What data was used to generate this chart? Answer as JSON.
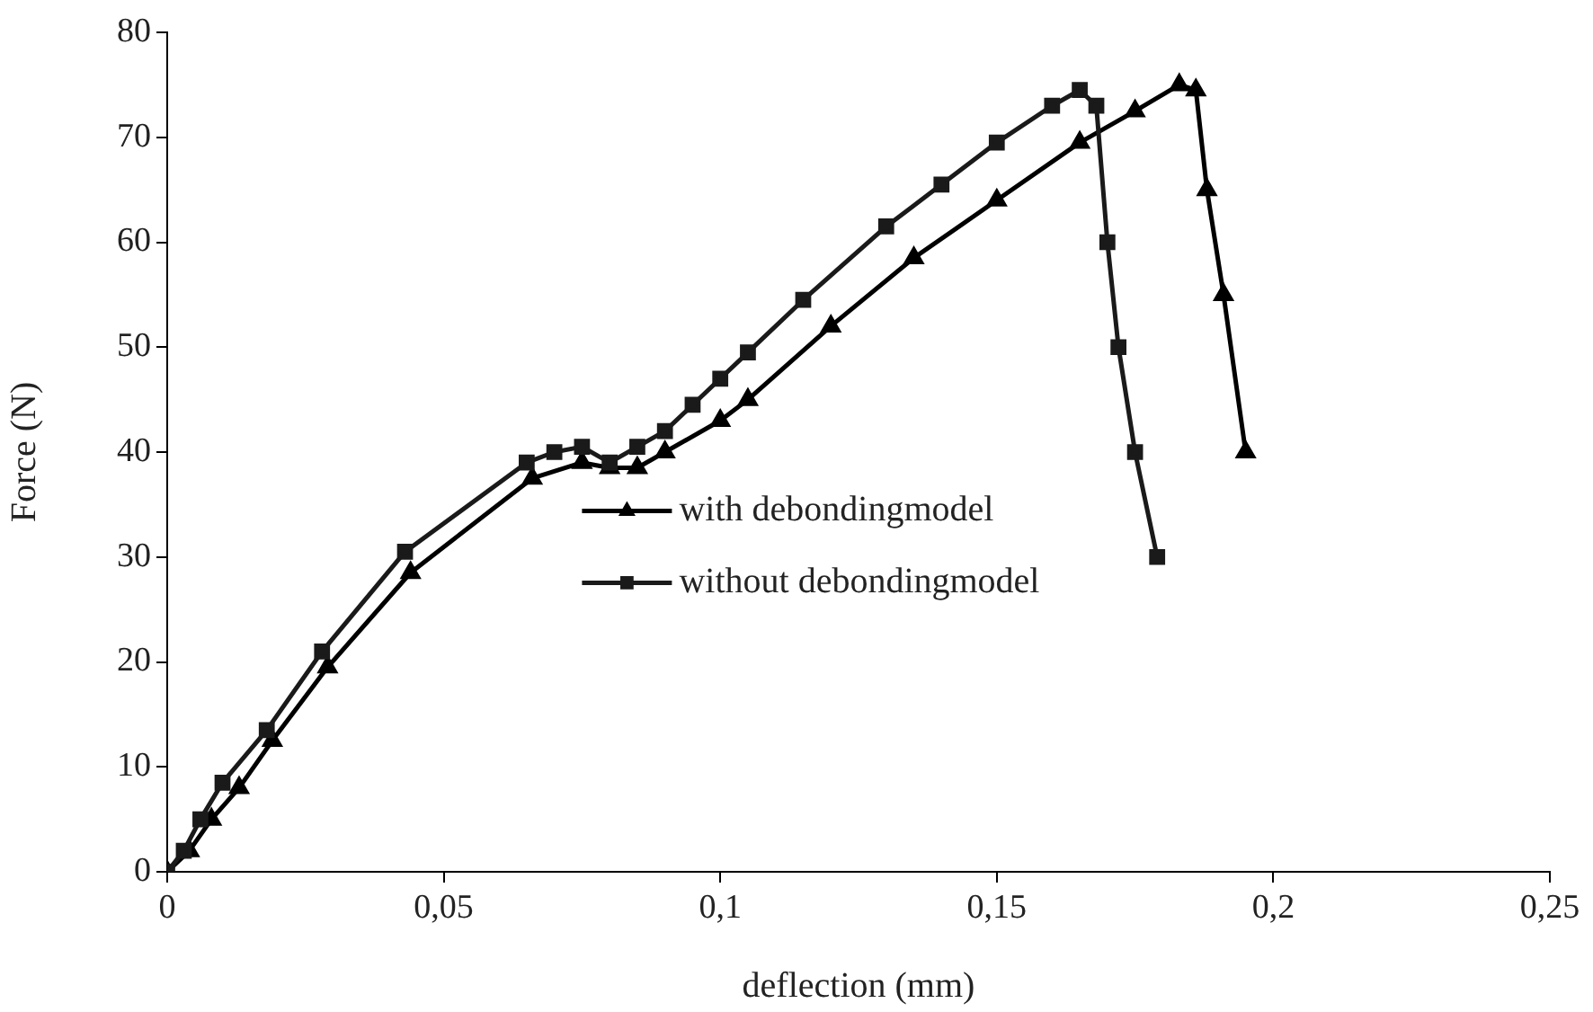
{
  "chart_data": {
    "type": "line",
    "xlabel": "deflection (mm)",
    "ylabel": "Force (N)",
    "xlim": [
      0,
      0.25
    ],
    "xticks": [
      0,
      {
        "value": 0.05,
        "label": "0,05"
      },
      {
        "value": 0.1,
        "label": "0,1"
      },
      {
        "value": 0.15,
        "label": "0,15"
      },
      {
        "value": 0.2,
        "label": "0,2"
      },
      {
        "value": 0.25,
        "label": "0,25"
      }
    ],
    "ylim": [
      0,
      80
    ],
    "yticks": [
      0,
      10,
      20,
      30,
      40,
      50,
      60,
      70,
      80
    ],
    "grid": false,
    "legend": "center",
    "line_style": "solid",
    "series": [
      {
        "name": "with debondingmodel",
        "color": "#000000",
        "marker": "triangle",
        "x": [
          0,
          0.004,
          0.008,
          0.013,
          0.019,
          0.029,
          0.044,
          0.066,
          0.075,
          0.08,
          0.085,
          0.09,
          0.1,
          0.105,
          0.12,
          0.135,
          0.15,
          0.165,
          0.175,
          0.183,
          0.186,
          0.188,
          0.191,
          0.195
        ],
        "values": [
          0,
          2,
          5,
          8,
          12.5,
          19.5,
          28.5,
          37.5,
          39,
          38.5,
          38.5,
          40,
          43,
          45,
          52,
          58.5,
          64,
          69.5,
          72.5,
          75,
          74.5,
          65,
          55,
          40
        ]
      },
      {
        "name": "without debondingmodel",
        "color": "#1a1a1a",
        "marker": "square",
        "x": [
          0,
          0.003,
          0.006,
          0.01,
          0.018,
          0.028,
          0.043,
          0.065,
          0.07,
          0.075,
          0.08,
          0.085,
          0.09,
          0.095,
          0.1,
          0.105,
          0.115,
          0.13,
          0.14,
          0.15,
          0.16,
          0.165,
          0.168,
          0.17,
          0.172,
          0.175,
          0.179
        ],
        "values": [
          0,
          2,
          5,
          8.5,
          13.5,
          21,
          30.5,
          39,
          40,
          40.5,
          39,
          40.5,
          42,
          44.5,
          47,
          49.5,
          54.5,
          61.5,
          65.5,
          69.5,
          73,
          74.5,
          73,
          60,
          50,
          40,
          30
        ]
      }
    ]
  }
}
